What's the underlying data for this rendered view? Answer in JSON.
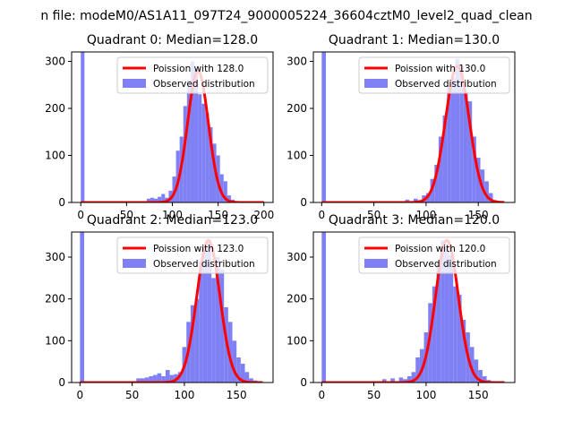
{
  "suptitle": "n file: modeM0/AS1A11_097T24_9000005224_36604cztM0_level2_quad_clean",
  "colors": {
    "hist": "#8080f5",
    "poisson": "#ff0000"
  },
  "chart_data": [
    {
      "type": "histogram+line",
      "title": "Quadrant 0: Median=128.0",
      "xlim": [
        -10,
        210
      ],
      "ylim": [
        0,
        320
      ],
      "xticks": [
        0,
        50,
        100,
        150,
        200
      ],
      "xtick_labels": [
        "0",
        "50",
        "100",
        "150",
        "200"
      ],
      "yticks": [
        0,
        100,
        200,
        300
      ],
      "ytick_labels": [
        "0",
        "100",
        "200",
        "300"
      ],
      "legend": [
        "Poission with 128.0",
        "Observed distribution"
      ],
      "legend_loc": "upper right",
      "median": 128.0,
      "bin_width": 4,
      "bins": [
        {
          "x": 0,
          "count": 320
        },
        {
          "x": 72,
          "count": 8
        },
        {
          "x": 76,
          "count": 10
        },
        {
          "x": 80,
          "count": 8
        },
        {
          "x": 84,
          "count": 12
        },
        {
          "x": 88,
          "count": 18
        },
        {
          "x": 92,
          "count": 10
        },
        {
          "x": 96,
          "count": 25
        },
        {
          "x": 100,
          "count": 55
        },
        {
          "x": 104,
          "count": 110
        },
        {
          "x": 108,
          "count": 140
        },
        {
          "x": 112,
          "count": 205
        },
        {
          "x": 116,
          "count": 260
        },
        {
          "x": 120,
          "count": 300
        },
        {
          "x": 124,
          "count": 285
        },
        {
          "x": 128,
          "count": 230
        },
        {
          "x": 132,
          "count": 210
        },
        {
          "x": 136,
          "count": 190
        },
        {
          "x": 140,
          "count": 160
        },
        {
          "x": 144,
          "count": 125
        },
        {
          "x": 148,
          "count": 100
        },
        {
          "x": 152,
          "count": 60
        },
        {
          "x": 156,
          "count": 45
        },
        {
          "x": 160,
          "count": 15
        },
        {
          "x": 164,
          "count": 6
        }
      ],
      "poisson_curve": {
        "x_range": [
          0,
          200
        ],
        "peak": 280,
        "mean": 128.0
      }
    },
    {
      "type": "histogram+line",
      "title": "Quadrant 1: Median=130.0",
      "xlim": [
        -8,
        185
      ],
      "ylim": [
        0,
        320
      ],
      "xticks": [
        0,
        50,
        100,
        150
      ],
      "xtick_labels": [
        "0",
        "50",
        "100",
        "150"
      ],
      "yticks": [
        0,
        100,
        200,
        300
      ],
      "ytick_labels": [
        "0",
        "100",
        "200",
        "300"
      ],
      "legend": [
        "Poission with 130.0",
        "Observed distribution"
      ],
      "legend_loc": "upper right",
      "median": 130.0,
      "bin_width": 4,
      "bins": [
        {
          "x": 0,
          "count": 320
        },
        {
          "x": 80,
          "count": 6
        },
        {
          "x": 88,
          "count": 8
        },
        {
          "x": 92,
          "count": 5
        },
        {
          "x": 96,
          "count": 15
        },
        {
          "x": 100,
          "count": 20
        },
        {
          "x": 104,
          "count": 50
        },
        {
          "x": 108,
          "count": 80
        },
        {
          "x": 112,
          "count": 140
        },
        {
          "x": 116,
          "count": 185
        },
        {
          "x": 120,
          "count": 250
        },
        {
          "x": 124,
          "count": 265
        },
        {
          "x": 128,
          "count": 305
        },
        {
          "x": 132,
          "count": 290
        },
        {
          "x": 136,
          "count": 235
        },
        {
          "x": 140,
          "count": 215
        },
        {
          "x": 144,
          "count": 140
        },
        {
          "x": 148,
          "count": 95
        },
        {
          "x": 152,
          "count": 70
        },
        {
          "x": 156,
          "count": 45
        },
        {
          "x": 160,
          "count": 20
        },
        {
          "x": 164,
          "count": 5
        }
      ],
      "poisson_curve": {
        "x_range": [
          0,
          175
        ],
        "peak": 290,
        "mean": 130.0
      }
    },
    {
      "type": "histogram+line",
      "title": "Quadrant 2: Median=123.0",
      "xlim": [
        -8,
        185
      ],
      "ylim": [
        0,
        360
      ],
      "xticks": [
        0,
        50,
        100,
        150
      ],
      "xtick_labels": [
        "0",
        "50",
        "100",
        "150"
      ],
      "yticks": [
        0,
        100,
        200,
        300
      ],
      "ytick_labels": [
        "0",
        "100",
        "200",
        "300"
      ],
      "legend": [
        "Poission with 123.0",
        "Observed distribution"
      ],
      "legend_loc": "upper right",
      "median": 123.0,
      "bin_width": 4,
      "bins": [
        {
          "x": 0,
          "count": 360
        },
        {
          "x": 54,
          "count": 10
        },
        {
          "x": 58,
          "count": 10
        },
        {
          "x": 62,
          "count": 12
        },
        {
          "x": 66,
          "count": 15
        },
        {
          "x": 70,
          "count": 18
        },
        {
          "x": 74,
          "count": 22
        },
        {
          "x": 78,
          "count": 15
        },
        {
          "x": 82,
          "count": 30
        },
        {
          "x": 86,
          "count": 18
        },
        {
          "x": 90,
          "count": 20
        },
        {
          "x": 94,
          "count": 25
        },
        {
          "x": 98,
          "count": 85
        },
        {
          "x": 102,
          "count": 145
        },
        {
          "x": 106,
          "count": 185
        },
        {
          "x": 110,
          "count": 200
        },
        {
          "x": 114,
          "count": 290
        },
        {
          "x": 118,
          "count": 330
        },
        {
          "x": 122,
          "count": 340
        },
        {
          "x": 126,
          "count": 250
        },
        {
          "x": 130,
          "count": 300
        },
        {
          "x": 134,
          "count": 270
        },
        {
          "x": 138,
          "count": 180
        },
        {
          "x": 142,
          "count": 145
        },
        {
          "x": 146,
          "count": 100
        },
        {
          "x": 150,
          "count": 60
        },
        {
          "x": 154,
          "count": 45
        },
        {
          "x": 158,
          "count": 25
        },
        {
          "x": 162,
          "count": 10
        },
        {
          "x": 166,
          "count": 5
        }
      ],
      "poisson_curve": {
        "x_range": [
          0,
          175
        ],
        "peak": 340,
        "mean": 123.0
      }
    },
    {
      "type": "histogram+line",
      "title": "Quadrant 3: Median=120.0",
      "xlim": [
        -8,
        185
      ],
      "ylim": [
        0,
        360
      ],
      "xticks": [
        0,
        50,
        100,
        150
      ],
      "xtick_labels": [
        "0",
        "50",
        "100",
        "150"
      ],
      "yticks": [
        0,
        100,
        200,
        300
      ],
      "ytick_labels": [
        "0",
        "100",
        "200",
        "300"
      ],
      "legend": [
        "Poission with 120.0",
        "Observed distribution"
      ],
      "legend_loc": "upper right",
      "median": 120.0,
      "bin_width": 4,
      "bins": [
        {
          "x": 0,
          "count": 360
        },
        {
          "x": 58,
          "count": 8
        },
        {
          "x": 66,
          "count": 10
        },
        {
          "x": 74,
          "count": 12
        },
        {
          "x": 78,
          "count": 8
        },
        {
          "x": 82,
          "count": 15
        },
        {
          "x": 86,
          "count": 25
        },
        {
          "x": 90,
          "count": 60
        },
        {
          "x": 94,
          "count": 80
        },
        {
          "x": 98,
          "count": 120
        },
        {
          "x": 102,
          "count": 190
        },
        {
          "x": 106,
          "count": 230
        },
        {
          "x": 110,
          "count": 290
        },
        {
          "x": 114,
          "count": 340
        },
        {
          "x": 118,
          "count": 325
        },
        {
          "x": 122,
          "count": 305
        },
        {
          "x": 126,
          "count": 230
        },
        {
          "x": 130,
          "count": 210
        },
        {
          "x": 134,
          "count": 150
        },
        {
          "x": 138,
          "count": 120
        },
        {
          "x": 142,
          "count": 85
        },
        {
          "x": 146,
          "count": 55
        },
        {
          "x": 150,
          "count": 30
        },
        {
          "x": 154,
          "count": 15
        },
        {
          "x": 158,
          "count": 6
        }
      ],
      "poisson_curve": {
        "x_range": [
          0,
          175
        ],
        "peak": 340,
        "mean": 120.0
      }
    }
  ]
}
